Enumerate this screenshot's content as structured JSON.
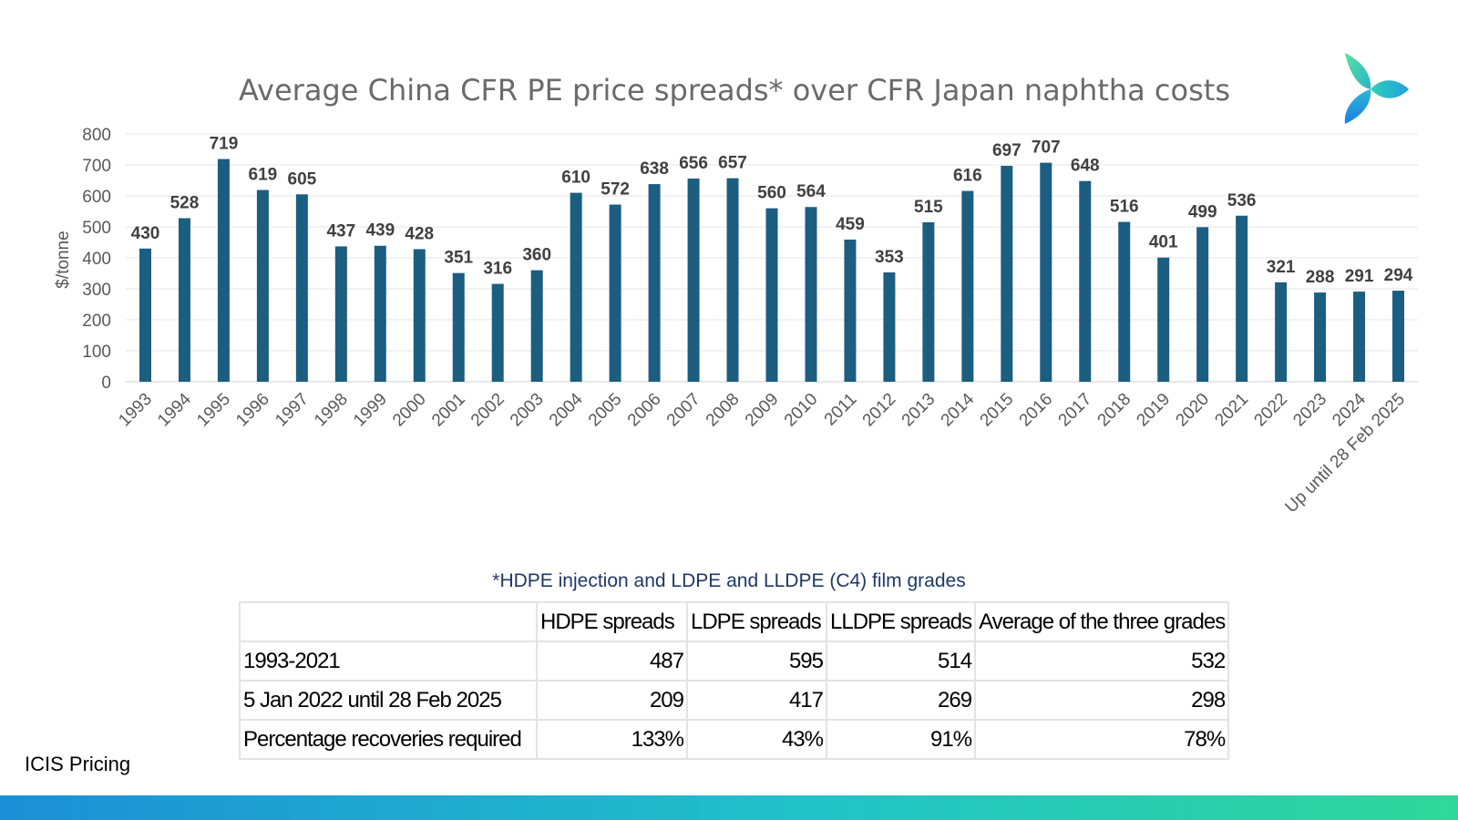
{
  "chart_data": {
    "type": "bar",
    "title": "Average China CFR PE price spreads* over CFR Japan naphtha costs",
    "ylabel": "$/tonne",
    "xlabel": "",
    "ylim": [
      0,
      800
    ],
    "yticks": [
      0,
      100,
      200,
      300,
      400,
      500,
      600,
      700,
      800
    ],
    "grid": true,
    "bar_color": "#1b5e80",
    "categories": [
      "1993",
      "1994",
      "1995",
      "1996",
      "1997",
      "1998",
      "1999",
      "2000",
      "2001",
      "2002",
      "2003",
      "2004",
      "2005",
      "2006",
      "2007",
      "2008",
      "2009",
      "2010",
      "2011",
      "2012",
      "2013",
      "2014",
      "2015",
      "2016",
      "2017",
      "2018",
      "2019",
      "2020",
      "2021",
      "2022",
      "2023",
      "2024",
      "Up until 28 Feb 2025"
    ],
    "values": [
      430,
      528,
      719,
      619,
      605,
      437,
      439,
      428,
      351,
      316,
      360,
      610,
      572,
      638,
      656,
      657,
      560,
      564,
      459,
      353,
      515,
      616,
      697,
      707,
      648,
      516,
      401,
      499,
      536,
      321,
      288,
      291,
      294
    ]
  },
  "footnote": "*HDPE injection and LDPE and LLDPE (C4) film grades",
  "table": {
    "headers": [
      "",
      "HDPE spreads",
      "LDPE spreads",
      "LLDPE spreads",
      "Average of the three grades"
    ],
    "rows": [
      {
        "label": "1993-2021",
        "values": [
          "487",
          "595",
          "514",
          "532"
        ]
      },
      {
        "label": "5 Jan 2022 until 28 Feb 2025",
        "values": [
          "209",
          "417",
          "269",
          "298"
        ]
      },
      {
        "label": "Percentage recoveries required",
        "values": [
          "133%",
          "43%",
          "91%",
          "78%"
        ]
      }
    ]
  },
  "source": "ICIS Pricing",
  "logo_icon": "icis-logo-icon"
}
